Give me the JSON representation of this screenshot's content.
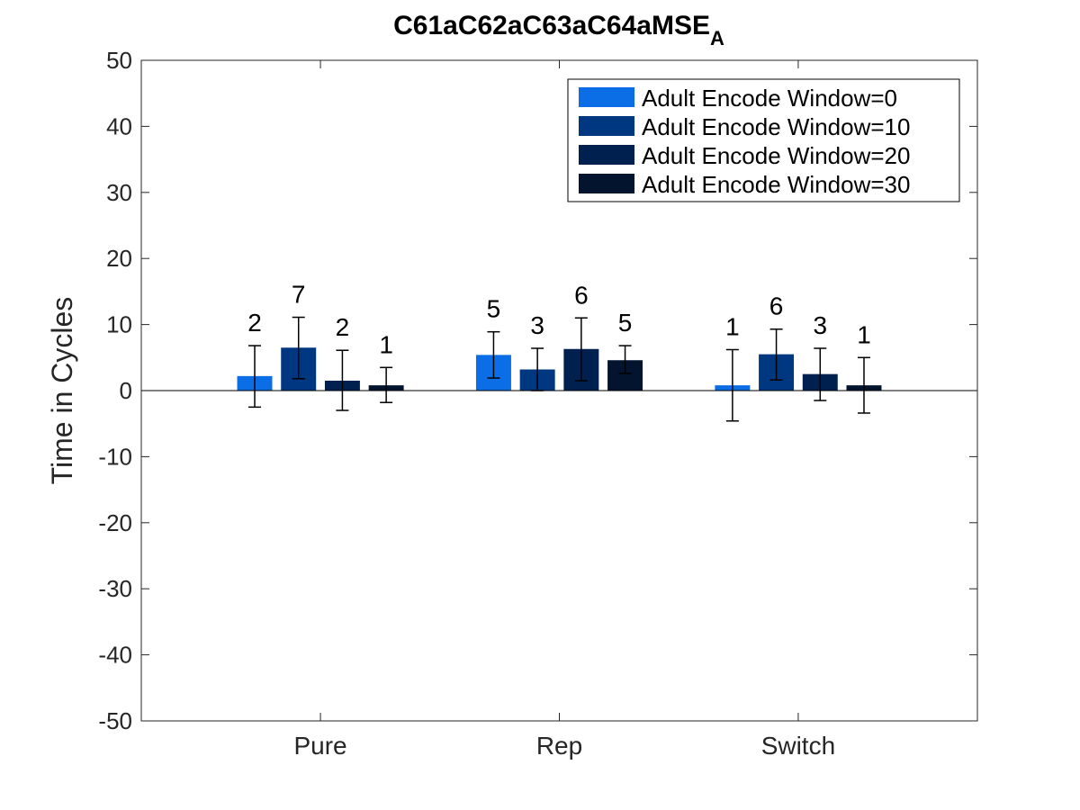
{
  "chart_data": {
    "type": "bar",
    "title": "C61aC62aC63aC64aMSE",
    "title_subscript": "A",
    "xlabel": "",
    "ylabel": "Time in Cycles",
    "ylim": [
      -50,
      50
    ],
    "yticks": [
      -50,
      -40,
      -30,
      -20,
      -10,
      0,
      10,
      20,
      30,
      40,
      50
    ],
    "categories": [
      "Pure",
      "Rep",
      "Switch"
    ],
    "legend_position": "top-right",
    "series": [
      {
        "name": "Adult Encode Window=0",
        "color": "#0b6ee6",
        "values": [
          2.2,
          5.4,
          0.8
        ],
        "err_low": [
          -2.5,
          1.9,
          -4.6
        ],
        "err_high": [
          6.8,
          8.9,
          6.2
        ],
        "labels": [
          "2",
          "5",
          "1"
        ]
      },
      {
        "name": "Adult Encode Window=10",
        "color": "#003781",
        "values": [
          6.5,
          3.2,
          5.5
        ],
        "err_low": [
          1.8,
          0.0,
          1.6
        ],
        "err_high": [
          11.1,
          6.4,
          9.3
        ],
        "labels": [
          "7",
          "3",
          "6"
        ]
      },
      {
        "name": "Adult Encode Window=20",
        "color": "#00214f",
        "values": [
          1.5,
          6.3,
          2.5
        ],
        "err_low": [
          -3.0,
          1.5,
          -1.5
        ],
        "err_high": [
          6.1,
          11.0,
          6.4
        ],
        "labels": [
          "2",
          "6",
          "3"
        ]
      },
      {
        "name": "Adult Encode Window=30",
        "color": "#03142e",
        "values": [
          0.8,
          4.6,
          0.8
        ],
        "err_low": [
          -1.8,
          2.6,
          -3.4
        ],
        "err_high": [
          3.5,
          6.8,
          5.0
        ],
        "labels": [
          "1",
          "5",
          "1"
        ]
      }
    ]
  }
}
